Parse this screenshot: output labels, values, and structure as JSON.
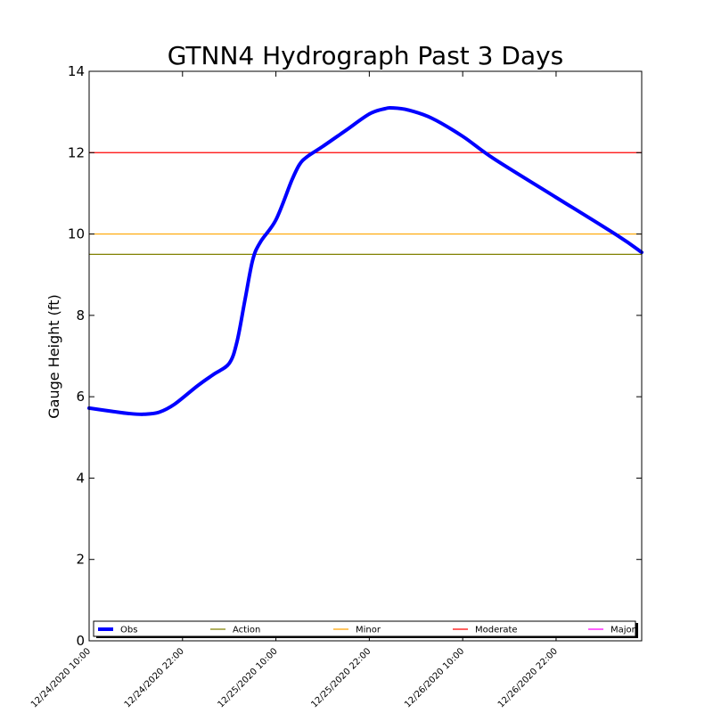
{
  "chart_data": {
    "type": "line",
    "title": "GTNN4 Hydrograph Past 3 Days",
    "xlabel": "",
    "ylabel": "Gauge Height (ft)",
    "ylim": [
      0,
      14
    ],
    "yticks": [
      0,
      2,
      4,
      6,
      8,
      10,
      12,
      14
    ],
    "xlim": [
      "2020-12-24T10:00",
      "2020-12-27T09:00"
    ],
    "xticks": [
      "12/24/2020 10:00",
      "12/24/2020 22:00",
      "12/25/2020 10:00",
      "12/25/2020 22:00",
      "12/26/2020 10:00",
      "12/26/2020 22:00"
    ],
    "grid": false,
    "legend_position": "bottom",
    "series": [
      {
        "name": "Obs",
        "color": "#0000ff",
        "points": [
          [
            "2020-12-24T10:00",
            5.72
          ],
          [
            "2020-12-24T13:00",
            5.64
          ],
          [
            "2020-12-24T15:00",
            5.59
          ],
          [
            "2020-12-24T17:00",
            5.57
          ],
          [
            "2020-12-24T19:00",
            5.62
          ],
          [
            "2020-12-24T21:00",
            5.82
          ],
          [
            "2020-12-25T00:00",
            6.28
          ],
          [
            "2020-12-25T02:00",
            6.55
          ],
          [
            "2020-12-25T04:00",
            6.82
          ],
          [
            "2020-12-25T05:00",
            7.35
          ],
          [
            "2020-12-25T06:00",
            8.35
          ],
          [
            "2020-12-25T07:00",
            9.35
          ],
          [
            "2020-12-25T08:00",
            9.8
          ],
          [
            "2020-12-25T10:00",
            10.35
          ],
          [
            "2020-12-25T12:00",
            11.3
          ],
          [
            "2020-12-25T13:00",
            11.7
          ],
          [
            "2020-12-25T14:00",
            11.9
          ],
          [
            "2020-12-25T16:00",
            12.15
          ],
          [
            "2020-12-25T19:00",
            12.55
          ],
          [
            "2020-12-25T22:00",
            12.95
          ],
          [
            "2020-12-26T00:00",
            13.08
          ],
          [
            "2020-12-26T01:00",
            13.1
          ],
          [
            "2020-12-26T03:00",
            13.05
          ],
          [
            "2020-12-26T06:00",
            12.85
          ],
          [
            "2020-12-26T10:00",
            12.4
          ],
          [
            "2020-12-26T14:00",
            11.85
          ],
          [
            "2020-12-26T22:00",
            10.9
          ],
          [
            "2020-12-27T06:00",
            9.95
          ],
          [
            "2020-12-27T09:00",
            9.55
          ]
        ]
      }
    ],
    "thresholds": [
      {
        "name": "Action",
        "value": 9.5,
        "color": "#808000"
      },
      {
        "name": "Minor",
        "value": 10.0,
        "color": "#ffa500"
      },
      {
        "name": "Moderate",
        "value": 12.0,
        "color": "#ff0000"
      },
      {
        "name": "Major",
        "value": null,
        "color": "#ff00ff"
      }
    ]
  }
}
